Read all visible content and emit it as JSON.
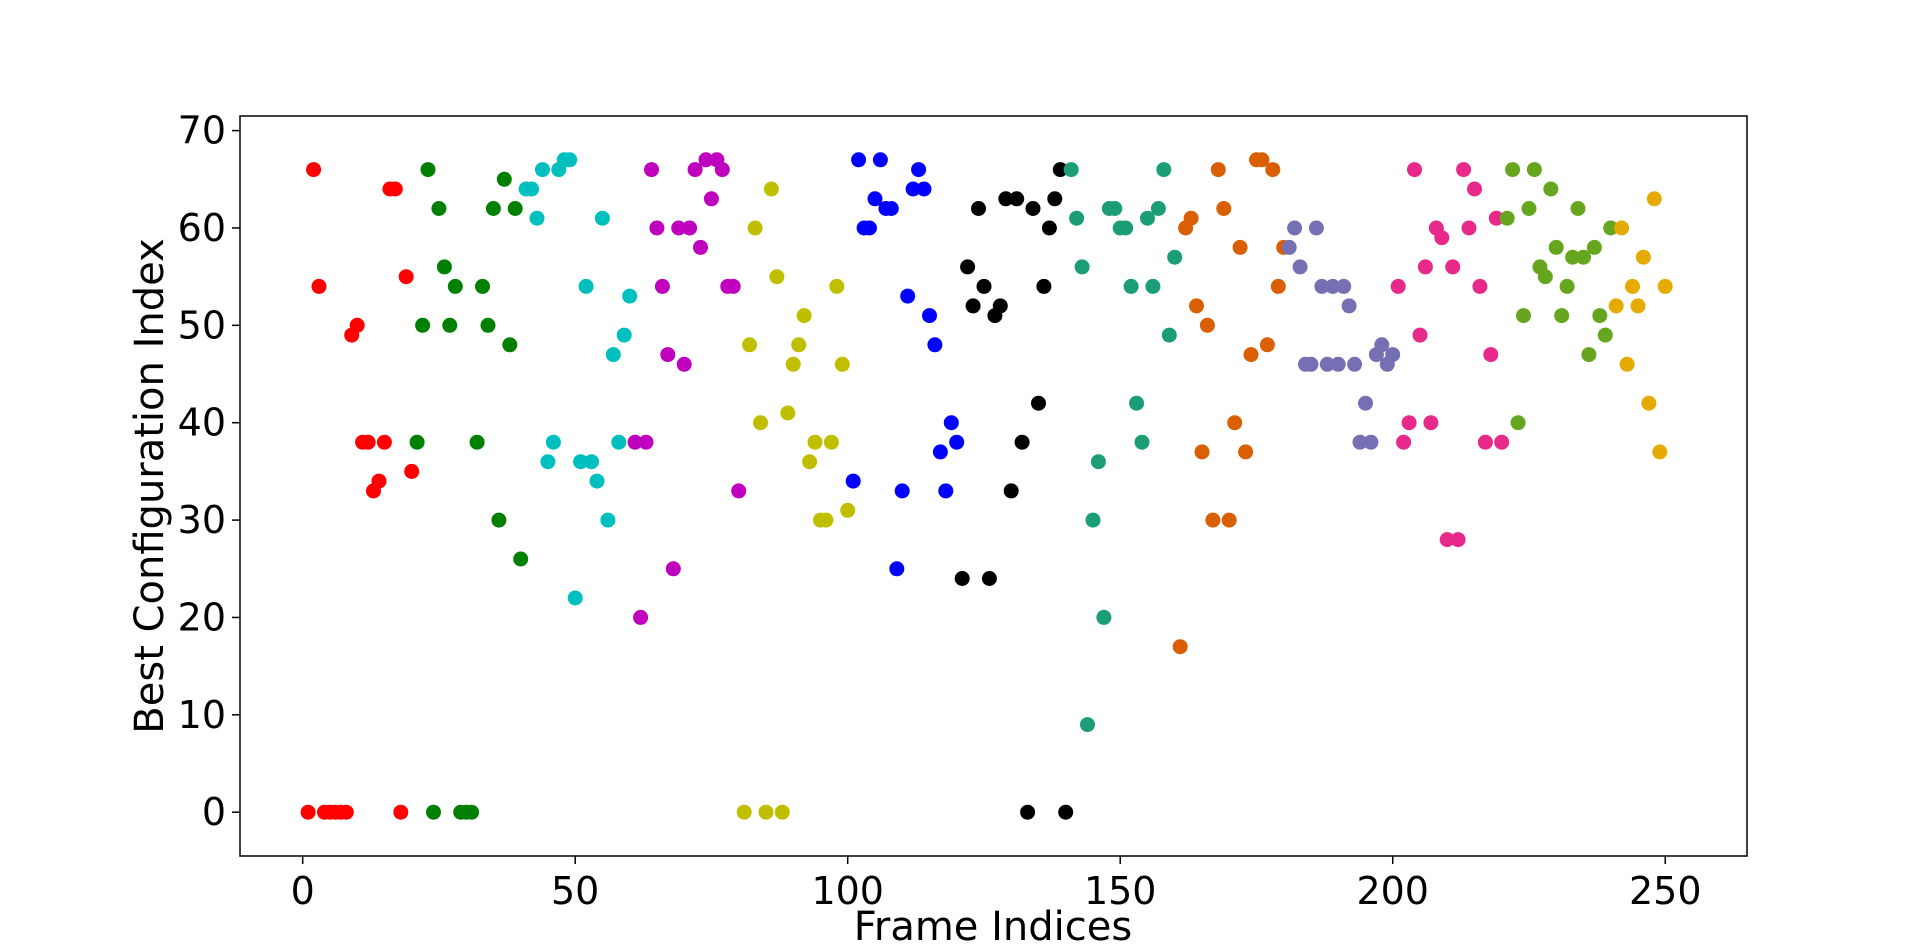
{
  "chart_data": {
    "type": "scatter",
    "title": "",
    "xlabel": "Frame Indices",
    "ylabel": "Best Configuration Index",
    "xlim": [
      -11.5,
      265
    ],
    "ylim": [
      -4.5,
      71.5
    ],
    "xticks": [
      0,
      50,
      100,
      150,
      200,
      250
    ],
    "yticks": [
      0,
      10,
      20,
      30,
      40,
      50,
      60,
      70
    ],
    "grid": false,
    "legend": "none",
    "series": [
      {
        "color": "#ff0000",
        "points": [
          [
            1,
            0
          ],
          [
            2,
            66
          ],
          [
            3,
            54
          ],
          [
            4,
            0
          ],
          [
            5,
            0
          ],
          [
            6,
            0
          ],
          [
            7,
            0
          ],
          [
            8,
            0
          ],
          [
            9,
            49
          ],
          [
            10,
            50
          ],
          [
            11,
            38
          ],
          [
            12,
            38
          ],
          [
            13,
            33
          ],
          [
            14,
            34
          ],
          [
            15,
            38
          ],
          [
            16,
            64
          ],
          [
            17,
            64
          ],
          [
            18,
            0
          ],
          [
            19,
            55
          ],
          [
            20,
            35
          ]
        ]
      },
      {
        "color": "#008000",
        "points": [
          [
            21,
            38
          ],
          [
            22,
            50
          ],
          [
            23,
            66
          ],
          [
            24,
            0
          ],
          [
            25,
            62
          ],
          [
            26,
            56
          ],
          [
            27,
            50
          ],
          [
            28,
            54
          ],
          [
            29,
            0
          ],
          [
            30,
            0
          ],
          [
            31,
            0
          ],
          [
            32,
            38
          ],
          [
            33,
            54
          ],
          [
            34,
            50
          ],
          [
            35,
            62
          ],
          [
            36,
            30
          ],
          [
            37,
            65
          ],
          [
            38,
            48
          ],
          [
            39,
            62
          ],
          [
            40,
            26
          ]
        ]
      },
      {
        "color": "#00bfbf",
        "points": [
          [
            41,
            64
          ],
          [
            42,
            64
          ],
          [
            43,
            61
          ],
          [
            44,
            66
          ],
          [
            45,
            36
          ],
          [
            46,
            38
          ],
          [
            47,
            66
          ],
          [
            48,
            67
          ],
          [
            49,
            67
          ],
          [
            50,
            22
          ],
          [
            51,
            36
          ],
          [
            52,
            54
          ],
          [
            53,
            36
          ],
          [
            54,
            34
          ],
          [
            55,
            61
          ],
          [
            56,
            30
          ],
          [
            57,
            47
          ],
          [
            58,
            38
          ],
          [
            59,
            49
          ],
          [
            60,
            53
          ]
        ]
      },
      {
        "color": "#bf00bf",
        "points": [
          [
            61,
            38
          ],
          [
            62,
            20
          ],
          [
            63,
            38
          ],
          [
            64,
            66
          ],
          [
            65,
            60
          ],
          [
            66,
            54
          ],
          [
            67,
            47
          ],
          [
            68,
            25
          ],
          [
            69,
            60
          ],
          [
            70,
            46
          ],
          [
            71,
            60
          ],
          [
            72,
            66
          ],
          [
            73,
            58
          ],
          [
            74,
            67
          ],
          [
            75,
            63
          ],
          [
            76,
            67
          ],
          [
            77,
            66
          ],
          [
            78,
            54
          ],
          [
            79,
            54
          ],
          [
            80,
            33
          ]
        ]
      },
      {
        "color": "#bfbf00",
        "points": [
          [
            81,
            0
          ],
          [
            82,
            48
          ],
          [
            83,
            60
          ],
          [
            84,
            40
          ],
          [
            85,
            0
          ],
          [
            86,
            64
          ],
          [
            87,
            55
          ],
          [
            88,
            0
          ],
          [
            89,
            41
          ],
          [
            90,
            46
          ],
          [
            91,
            48
          ],
          [
            92,
            51
          ],
          [
            93,
            36
          ],
          [
            94,
            38
          ],
          [
            95,
            30
          ],
          [
            96,
            30
          ],
          [
            97,
            38
          ],
          [
            98,
            54
          ],
          [
            99,
            46
          ],
          [
            100,
            31
          ]
        ]
      },
      {
        "color": "#0000ff",
        "points": [
          [
            101,
            34
          ],
          [
            102,
            67
          ],
          [
            103,
            60
          ],
          [
            104,
            60
          ],
          [
            105,
            63
          ],
          [
            106,
            67
          ],
          [
            107,
            62
          ],
          [
            108,
            62
          ],
          [
            109,
            25
          ],
          [
            110,
            33
          ],
          [
            111,
            53
          ],
          [
            112,
            64
          ],
          [
            113,
            66
          ],
          [
            114,
            64
          ],
          [
            115,
            51
          ],
          [
            116,
            48
          ],
          [
            117,
            37
          ],
          [
            118,
            33
          ],
          [
            119,
            40
          ],
          [
            120,
            38
          ]
        ]
      },
      {
        "color": "#000000",
        "points": [
          [
            121,
            24
          ],
          [
            122,
            56
          ],
          [
            123,
            52
          ],
          [
            124,
            62
          ],
          [
            125,
            54
          ],
          [
            126,
            24
          ],
          [
            127,
            51
          ],
          [
            128,
            52
          ],
          [
            129,
            63
          ],
          [
            130,
            33
          ],
          [
            131,
            63
          ],
          [
            132,
            38
          ],
          [
            133,
            0
          ],
          [
            134,
            62
          ],
          [
            135,
            42
          ],
          [
            136,
            54
          ],
          [
            137,
            60
          ],
          [
            138,
            63
          ],
          [
            139,
            66
          ],
          [
            140,
            0
          ]
        ]
      },
      {
        "color": "#1b9e77",
        "points": [
          [
            141,
            66
          ],
          [
            142,
            61
          ],
          [
            143,
            56
          ],
          [
            144,
            9
          ],
          [
            145,
            30
          ],
          [
            146,
            36
          ],
          [
            147,
            20
          ],
          [
            148,
            62
          ],
          [
            149,
            62
          ],
          [
            150,
            60
          ],
          [
            151,
            60
          ],
          [
            152,
            54
          ],
          [
            153,
            42
          ],
          [
            154,
            38
          ],
          [
            155,
            61
          ],
          [
            156,
            54
          ],
          [
            157,
            62
          ],
          [
            158,
            66
          ],
          [
            159,
            49
          ],
          [
            160,
            57
          ]
        ]
      },
      {
        "color": "#d95f02",
        "points": [
          [
            161,
            17
          ],
          [
            162,
            60
          ],
          [
            163,
            61
          ],
          [
            164,
            52
          ],
          [
            165,
            37
          ],
          [
            166,
            50
          ],
          [
            167,
            30
          ],
          [
            168,
            66
          ],
          [
            169,
            62
          ],
          [
            170,
            30
          ],
          [
            171,
            40
          ],
          [
            172,
            58
          ],
          [
            173,
            37
          ],
          [
            174,
            47
          ],
          [
            175,
            67
          ],
          [
            176,
            67
          ],
          [
            177,
            48
          ],
          [
            178,
            66
          ],
          [
            179,
            54
          ],
          [
            180,
            58
          ]
        ]
      },
      {
        "color": "#7570b3",
        "points": [
          [
            181,
            58
          ],
          [
            182,
            60
          ],
          [
            183,
            56
          ],
          [
            184,
            46
          ],
          [
            185,
            46
          ],
          [
            186,
            60
          ],
          [
            187,
            54
          ],
          [
            188,
            46
          ],
          [
            189,
            54
          ],
          [
            190,
            46
          ],
          [
            191,
            54
          ],
          [
            192,
            52
          ],
          [
            193,
            46
          ],
          [
            194,
            38
          ],
          [
            195,
            42
          ],
          [
            196,
            38
          ],
          [
            197,
            47
          ],
          [
            198,
            48
          ],
          [
            199,
            46
          ],
          [
            200,
            47
          ]
        ]
      },
      {
        "color": "#e7298a",
        "points": [
          [
            201,
            54
          ],
          [
            202,
            38
          ],
          [
            203,
            40
          ],
          [
            204,
            66
          ],
          [
            205,
            49
          ],
          [
            206,
            56
          ],
          [
            207,
            40
          ],
          [
            208,
            60
          ],
          [
            209,
            59
          ],
          [
            210,
            28
          ],
          [
            211,
            56
          ],
          [
            212,
            28
          ],
          [
            213,
            66
          ],
          [
            214,
            60
          ],
          [
            215,
            64
          ],
          [
            216,
            54
          ],
          [
            217,
            38
          ],
          [
            218,
            47
          ],
          [
            219,
            61
          ],
          [
            220,
            38
          ]
        ]
      },
      {
        "color": "#66a61e",
        "points": [
          [
            221,
            61
          ],
          [
            222,
            66
          ],
          [
            223,
            40
          ],
          [
            224,
            51
          ],
          [
            225,
            62
          ],
          [
            226,
            66
          ],
          [
            227,
            56
          ],
          [
            228,
            55
          ],
          [
            229,
            64
          ],
          [
            230,
            58
          ],
          [
            231,
            51
          ],
          [
            232,
            54
          ],
          [
            233,
            57
          ],
          [
            234,
            62
          ],
          [
            235,
            57
          ],
          [
            236,
            47
          ],
          [
            237,
            58
          ],
          [
            238,
            51
          ],
          [
            239,
            49
          ],
          [
            240,
            60
          ]
        ]
      },
      {
        "color": "#e6ab02",
        "points": [
          [
            241,
            52
          ],
          [
            242,
            60
          ],
          [
            243,
            46
          ],
          [
            244,
            54
          ],
          [
            245,
            52
          ],
          [
            246,
            57
          ],
          [
            247,
            42
          ],
          [
            248,
            63
          ],
          [
            249,
            37
          ],
          [
            250,
            54
          ]
        ]
      }
    ]
  }
}
